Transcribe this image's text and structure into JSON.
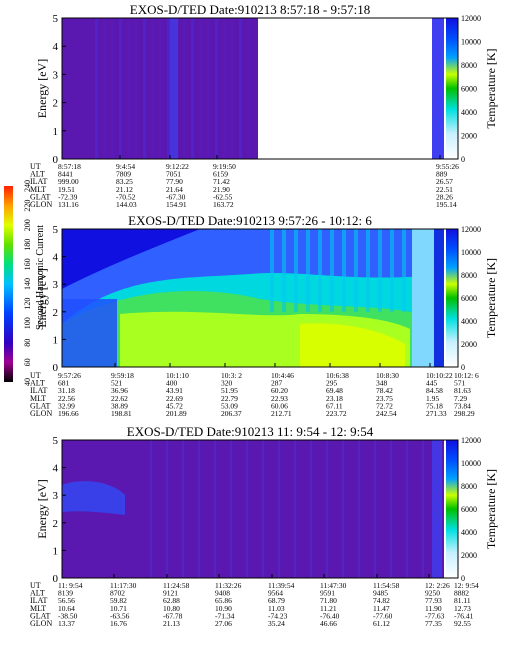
{
  "colors": {
    "spectrogram_base": "#5a18b0",
    "temperature_scale": [
      "#ffffff",
      "#c8f0ff",
      "#00e0e0",
      "#00c000",
      "#c8ff00",
      "#0050ff",
      "#1010e0"
    ],
    "harmonic_scale": [
      "#000000",
      "#a00090",
      "#3000c0",
      "#0040ff",
      "#00c0ff",
      "#00e080",
      "#60e000",
      "#e0ff00",
      "#ffa000",
      "#ff2000"
    ]
  },
  "second_harmonic_scale": {
    "label": "Second Harmonic Current",
    "ticks": [
      "40",
      "60",
      "80",
      "100",
      "120",
      "140",
      "160",
      "180",
      "200",
      "220",
      "240"
    ]
  },
  "row_labels": [
    "UT",
    "ALT",
    "ILAT",
    "MLT",
    "GLAT",
    "GLON"
  ],
  "chart_data": [
    {
      "type": "heatmap",
      "title": "EXOS-D/TED   Date:910213  8:57:18 - 9:57:18",
      "ylabel": "Energy [eV]",
      "y2label": "Temperature [K]",
      "ylim": [
        0,
        5
      ],
      "y_ticks": [
        "0",
        "1",
        "2",
        "3",
        "4",
        "5"
      ],
      "y2lim": [
        0,
        12000
      ],
      "y2_ticks": [
        "0",
        "2000",
        "4000",
        "6000",
        "8000",
        "10000",
        "12000"
      ],
      "columns": [
        [
          "8:57:18",
          "8441",
          "999.00",
          "19.51",
          "-72.39",
          "131.16"
        ],
        [
          "9:4:54",
          "7809",
          "83.25",
          "21.12",
          "-70.52",
          "144.03"
        ],
        [
          "9:12:22",
          "7051",
          "77.90",
          "21.64",
          "-67.30",
          "154.91"
        ],
        [
          "9:19:50",
          "6159",
          "71.42",
          "21.90",
          "-62.55",
          "163.72"
        ],
        [
          "9:55:26",
          "889",
          "26.57",
          "22.51",
          "28.26",
          "195.14"
        ]
      ]
    },
    {
      "type": "heatmap",
      "title": "EXOS-D/TED   Date:910213  9:57:26 - 10:12: 6",
      "ylabel": "Energy [eV]",
      "y2label": "Temperature [K]",
      "ylim": [
        0,
        5
      ],
      "y_ticks": [
        "0",
        "1",
        "2",
        "3",
        "4",
        "5"
      ],
      "y2lim": [
        0,
        12000
      ],
      "y2_ticks": [
        "0",
        "2000",
        "4000",
        "6000",
        "8000",
        "10000",
        "12000"
      ],
      "columns": [
        [
          "9:57:26",
          "681",
          "31.18",
          "22.56",
          "32.99",
          "196.66"
        ],
        [
          "9:59:18",
          "521",
          "36.96",
          "22.62",
          "38.89",
          "198.81"
        ],
        [
          "10:1:10",
          "400",
          "43.91",
          "22.69",
          "45.72",
          "201.89"
        ],
        [
          "10:3: 2",
          "320",
          "51.95",
          "22.79",
          "53.09",
          "206.37"
        ],
        [
          "10:4:46",
          "287",
          "60.20",
          "22.93",
          "60.06",
          "212.71"
        ],
        [
          "10:6:38",
          "295",
          "69.48",
          "23.18",
          "67.11",
          "223.72"
        ],
        [
          "10:8:30",
          "348",
          "78.42",
          "23.75",
          "72.72",
          "242.54"
        ],
        [
          "10:10:22",
          "445",
          "84.58",
          "1.95",
          "75.18",
          "271.33"
        ],
        [
          "10:12: 6",
          "571",
          "81.63",
          "7.29",
          "73.84",
          "298.29"
        ]
      ]
    },
    {
      "type": "heatmap",
      "title": "EXOS-D/TED   Date:910213  11: 9:54 - 12: 9:54",
      "ylabel": "Energy [eV]",
      "y2label": "Temperature [K]",
      "ylim": [
        0,
        5
      ],
      "y_ticks": [
        "0",
        "1",
        "2",
        "3",
        "4",
        "5"
      ],
      "y2lim": [
        0,
        12000
      ],
      "y2_ticks": [
        "0",
        "2000",
        "4000",
        "6000",
        "8000",
        "10000",
        "12000"
      ],
      "columns": [
        [
          "11: 9:54",
          "8139",
          "56.56",
          "10.64",
          "-38.50",
          "13.37"
        ],
        [
          "11:17:30",
          "8702",
          "59.82",
          "10.71",
          "-63.56",
          "16.76"
        ],
        [
          "11:24:58",
          "9121",
          "62.88",
          "10.80",
          "-67.78",
          "21.13"
        ],
        [
          "11:32:26",
          "9408",
          "65.86",
          "10.90",
          "-71.34",
          "27.06"
        ],
        [
          "11:39:54",
          "9564",
          "68.79",
          "11.03",
          "-74.23",
          "35.24"
        ],
        [
          "11:47:30",
          "9591",
          "71.80",
          "11.21",
          "-76.40",
          "46.66"
        ],
        [
          "11:54:58",
          "9485",
          "74.82",
          "11.47",
          "-77.60",
          "61.12"
        ],
        [
          "12: 2:26",
          "9250",
          "77.93",
          "11.90",
          "-77.63",
          "77.35"
        ],
        [
          "12: 9:54",
          "8882",
          "81.11",
          "12.73",
          "-76.41",
          "92.55"
        ]
      ]
    }
  ]
}
